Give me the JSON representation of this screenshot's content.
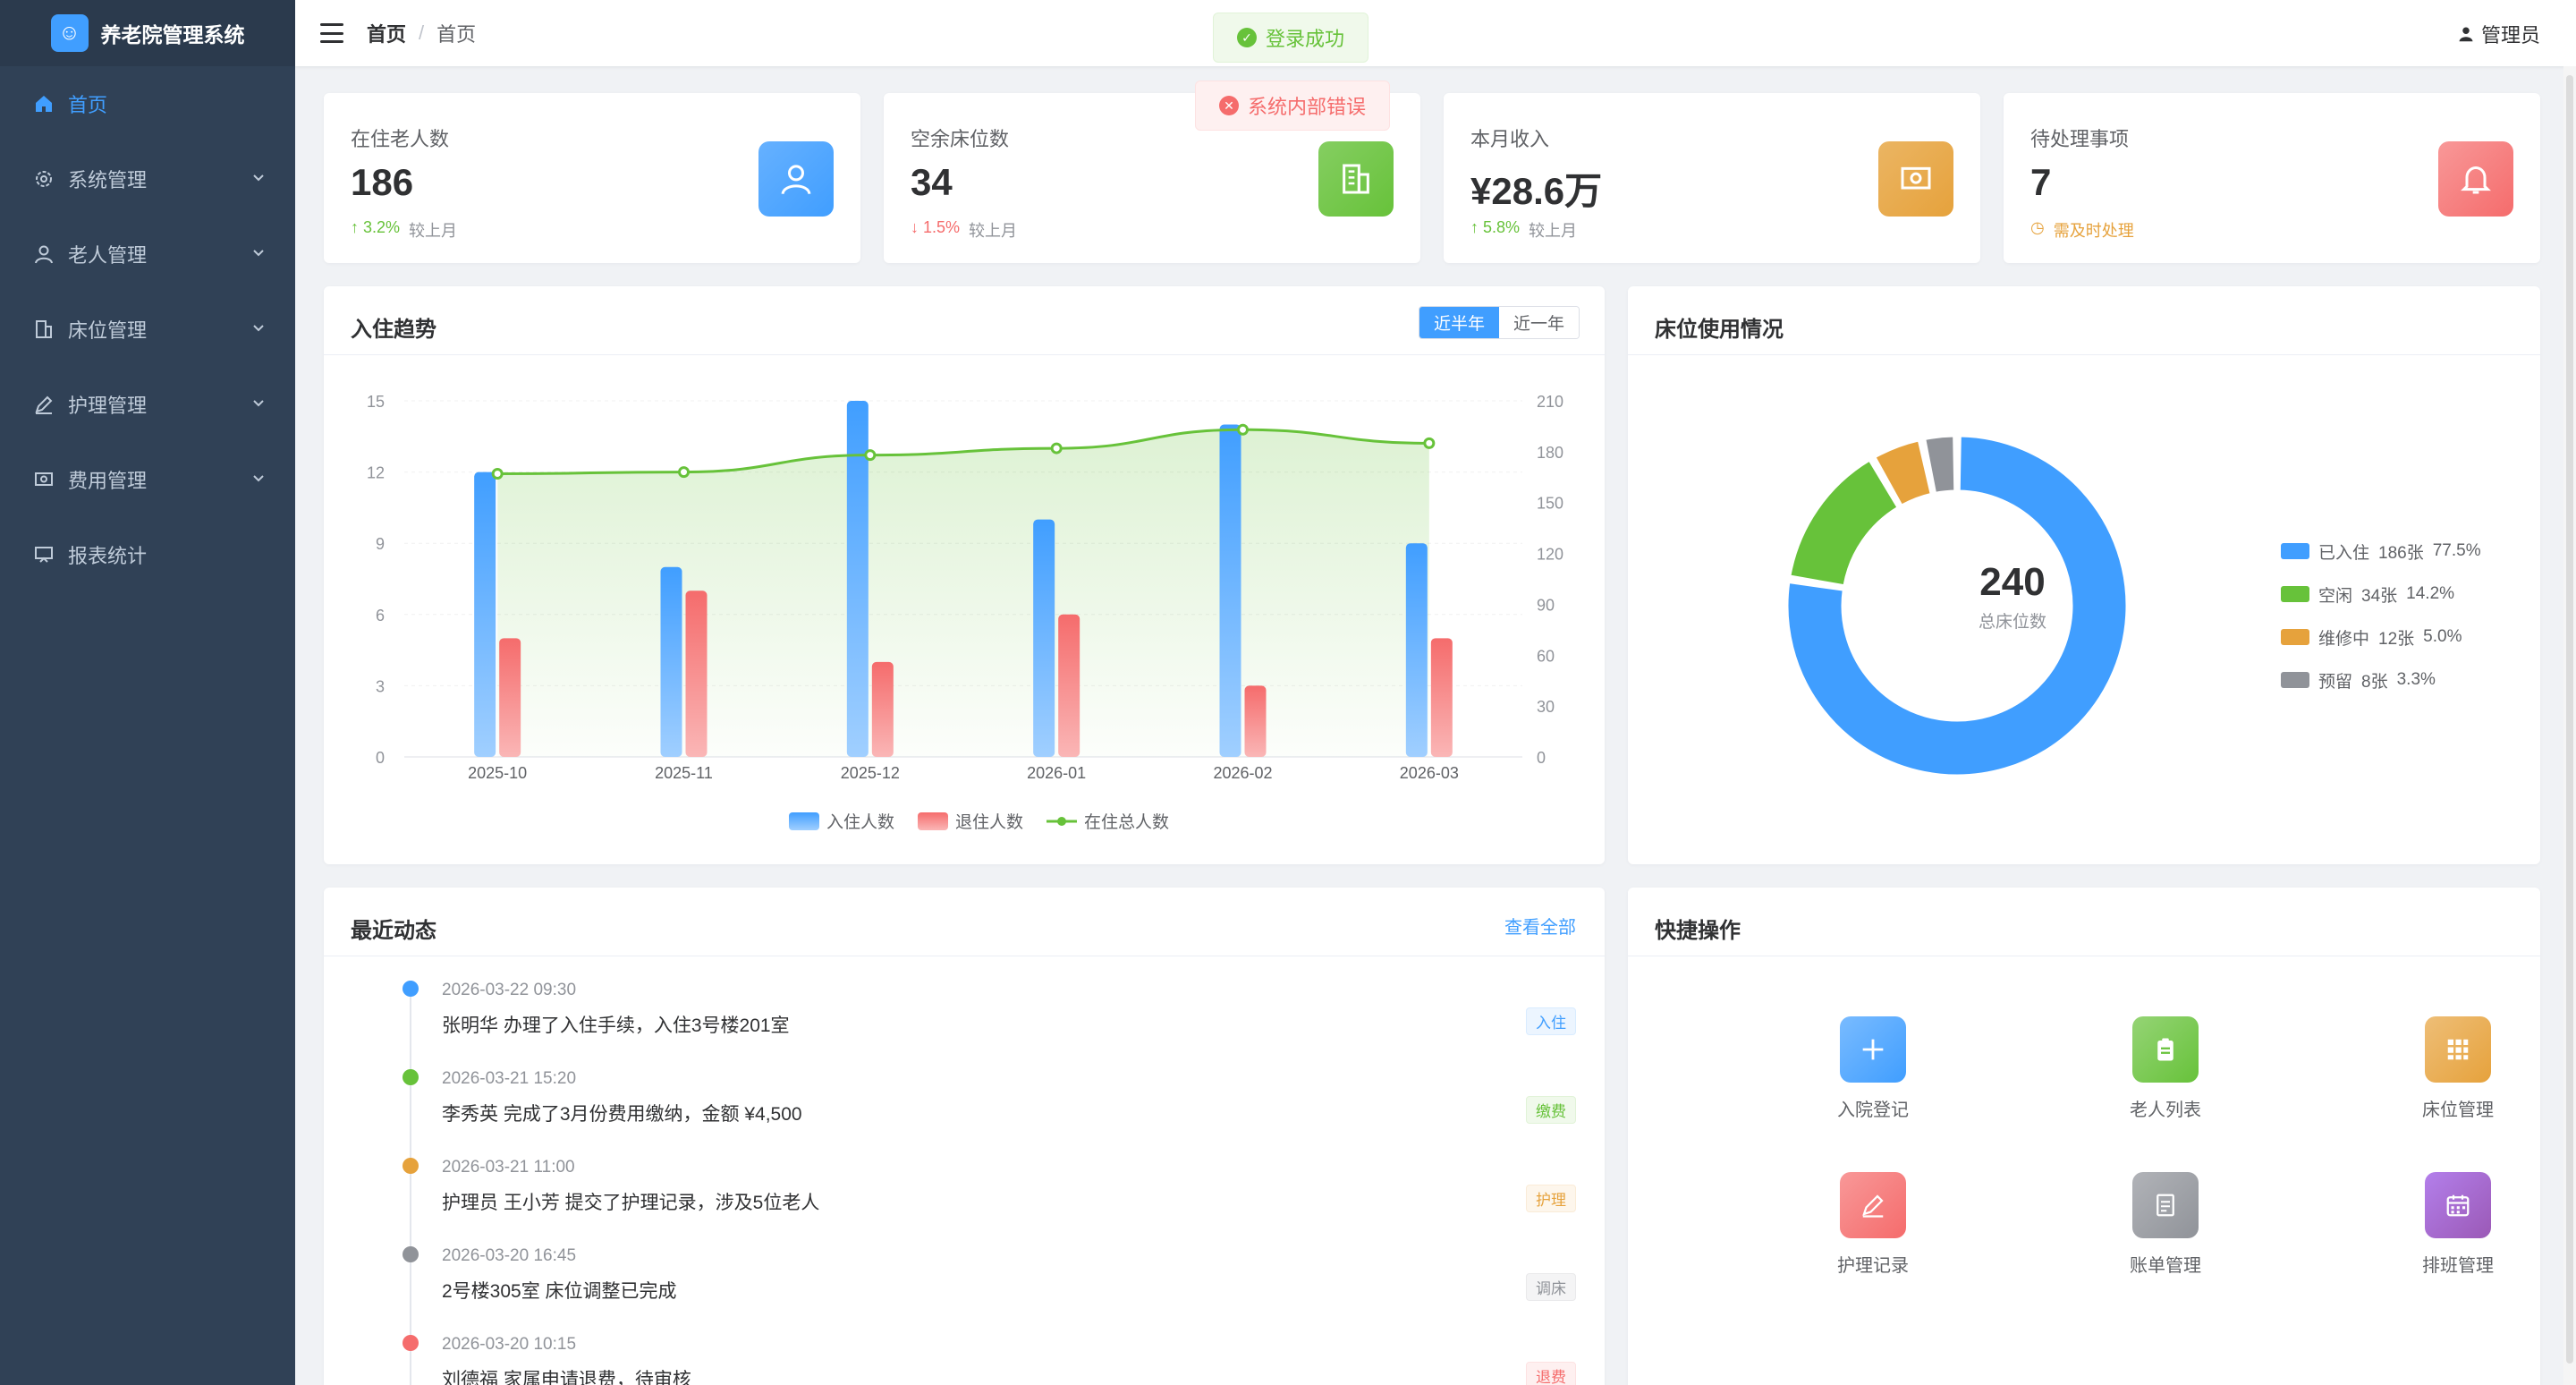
{
  "app": {
    "title": "养老院管理系统"
  },
  "sidebar": {
    "items": [
      {
        "label": "首页",
        "icon": "home-icon",
        "active": true
      },
      {
        "label": "系统管理",
        "icon": "gear-icon"
      },
      {
        "label": "老人管理",
        "icon": "user-icon"
      },
      {
        "label": "床位管理",
        "icon": "building-icon"
      },
      {
        "label": "护理管理",
        "icon": "pen-icon"
      },
      {
        "label": "费用管理",
        "icon": "money-icon"
      },
      {
        "label": "报表统计",
        "icon": "chart-icon"
      }
    ]
  },
  "header": {
    "breadcrumb": [
      "首页",
      "首页"
    ],
    "user": "管理员"
  },
  "toasts": {
    "success": "登录成功",
    "error": "系统内部错误"
  },
  "stats": [
    {
      "label": "在住老人数",
      "value": "186",
      "trend": "↑ 3.2%",
      "trend_suffix": "较上月",
      "color": "#409eff"
    },
    {
      "label": "空余床位数",
      "value": "34",
      "trend": "↓ 1.5%",
      "trend_suffix": "较上月",
      "color": "#67c23a"
    },
    {
      "label": "本月收入",
      "value": "¥28.6万",
      "trend": "↑ 5.8%",
      "trend_suffix": "较上月",
      "color": "#e6a23c"
    },
    {
      "label": "待处理事项",
      "value": "7",
      "trend": "需及时处理",
      "trend_suffix": "",
      "color": "#f56c6c"
    }
  ],
  "trend_card": {
    "title": "入住趋势",
    "toggle": [
      "近半年",
      "近一年"
    ],
    "legend": [
      "入住人数",
      "退住人数",
      "在住总人数"
    ]
  },
  "chart_data": {
    "type": "bar",
    "categories": [
      "2025-10",
      "2025-11",
      "2025-12",
      "2026-01",
      "2026-02",
      "2026-03"
    ],
    "series": [
      {
        "name": "入住人数",
        "type": "bar",
        "axis": "left",
        "values": [
          12,
          8,
          15,
          10,
          14,
          9
        ],
        "color": "#409eff"
      },
      {
        "name": "退住人数",
        "type": "bar",
        "axis": "left",
        "values": [
          5,
          7,
          4,
          6,
          3,
          5
        ],
        "color": "#f56c6c"
      },
      {
        "name": "在住总人数",
        "type": "line",
        "axis": "right",
        "values": [
          167,
          168,
          178,
          182,
          193,
          185
        ],
        "color": "#67c23a"
      }
    ],
    "y_left": {
      "ticks": [
        0,
        3,
        6,
        9,
        12,
        15
      ],
      "ylim": [
        0,
        15
      ]
    },
    "y_right": {
      "ticks": [
        0,
        30,
        60,
        90,
        120,
        150,
        180,
        210
      ],
      "ylim": [
        0,
        210
      ]
    }
  },
  "bed_card": {
    "title": "床位使用情况",
    "total": "240",
    "total_label": "总床位数",
    "slices": [
      {
        "name": "已入住",
        "count": "186张",
        "pct": "77.5%",
        "value": 186,
        "color": "#409eff"
      },
      {
        "name": "空闲",
        "count": "34张",
        "pct": "14.2%",
        "value": 34,
        "color": "#67c23a"
      },
      {
        "name": "维修中",
        "count": "12张",
        "pct": "5.0%",
        "value": 12,
        "color": "#e6a23c"
      },
      {
        "name": "预留",
        "count": "8张",
        "pct": "3.3%",
        "value": 8,
        "color": "#909399"
      }
    ]
  },
  "activity": {
    "title": "最近动态",
    "view_all": "查看全部",
    "items": [
      {
        "time": "2026-03-22 09:30",
        "text": "张明华 办理了入住手续，入住3号楼201室",
        "tag": "入住",
        "color": "#409eff"
      },
      {
        "time": "2026-03-21 15:20",
        "text": "李秀英 完成了3月份费用缴纳，金额 ¥4,500",
        "tag": "缴费",
        "color": "#67c23a"
      },
      {
        "time": "2026-03-21 11:00",
        "text": "护理员 王小芳 提交了护理记录，涉及5位老人",
        "tag": "护理",
        "color": "#e6a23c"
      },
      {
        "time": "2026-03-20 16:45",
        "text": "2号楼305室 床位调整已完成",
        "tag": "调床",
        "color": "#909399"
      },
      {
        "time": "2026-03-20 10:15",
        "text": "刘德福 家属申请退费，待审核",
        "tag": "退费",
        "color": "#f56c6c"
      }
    ]
  },
  "quick": {
    "title": "快捷操作",
    "items": [
      {
        "label": "入院登记",
        "icon": "plus-icon",
        "color": "#409eff"
      },
      {
        "label": "老人列表",
        "icon": "clipboard-icon",
        "color": "#67c23a"
      },
      {
        "label": "床位管理",
        "icon": "grid-icon",
        "color": "#e6a23c"
      },
      {
        "label": "护理记录",
        "icon": "pen-icon",
        "color": "#f56c6c"
      },
      {
        "label": "账单管理",
        "icon": "document-icon",
        "color": "#909399"
      },
      {
        "label": "排班管理",
        "icon": "calendar-icon",
        "color": "#9b59b6"
      }
    ]
  }
}
